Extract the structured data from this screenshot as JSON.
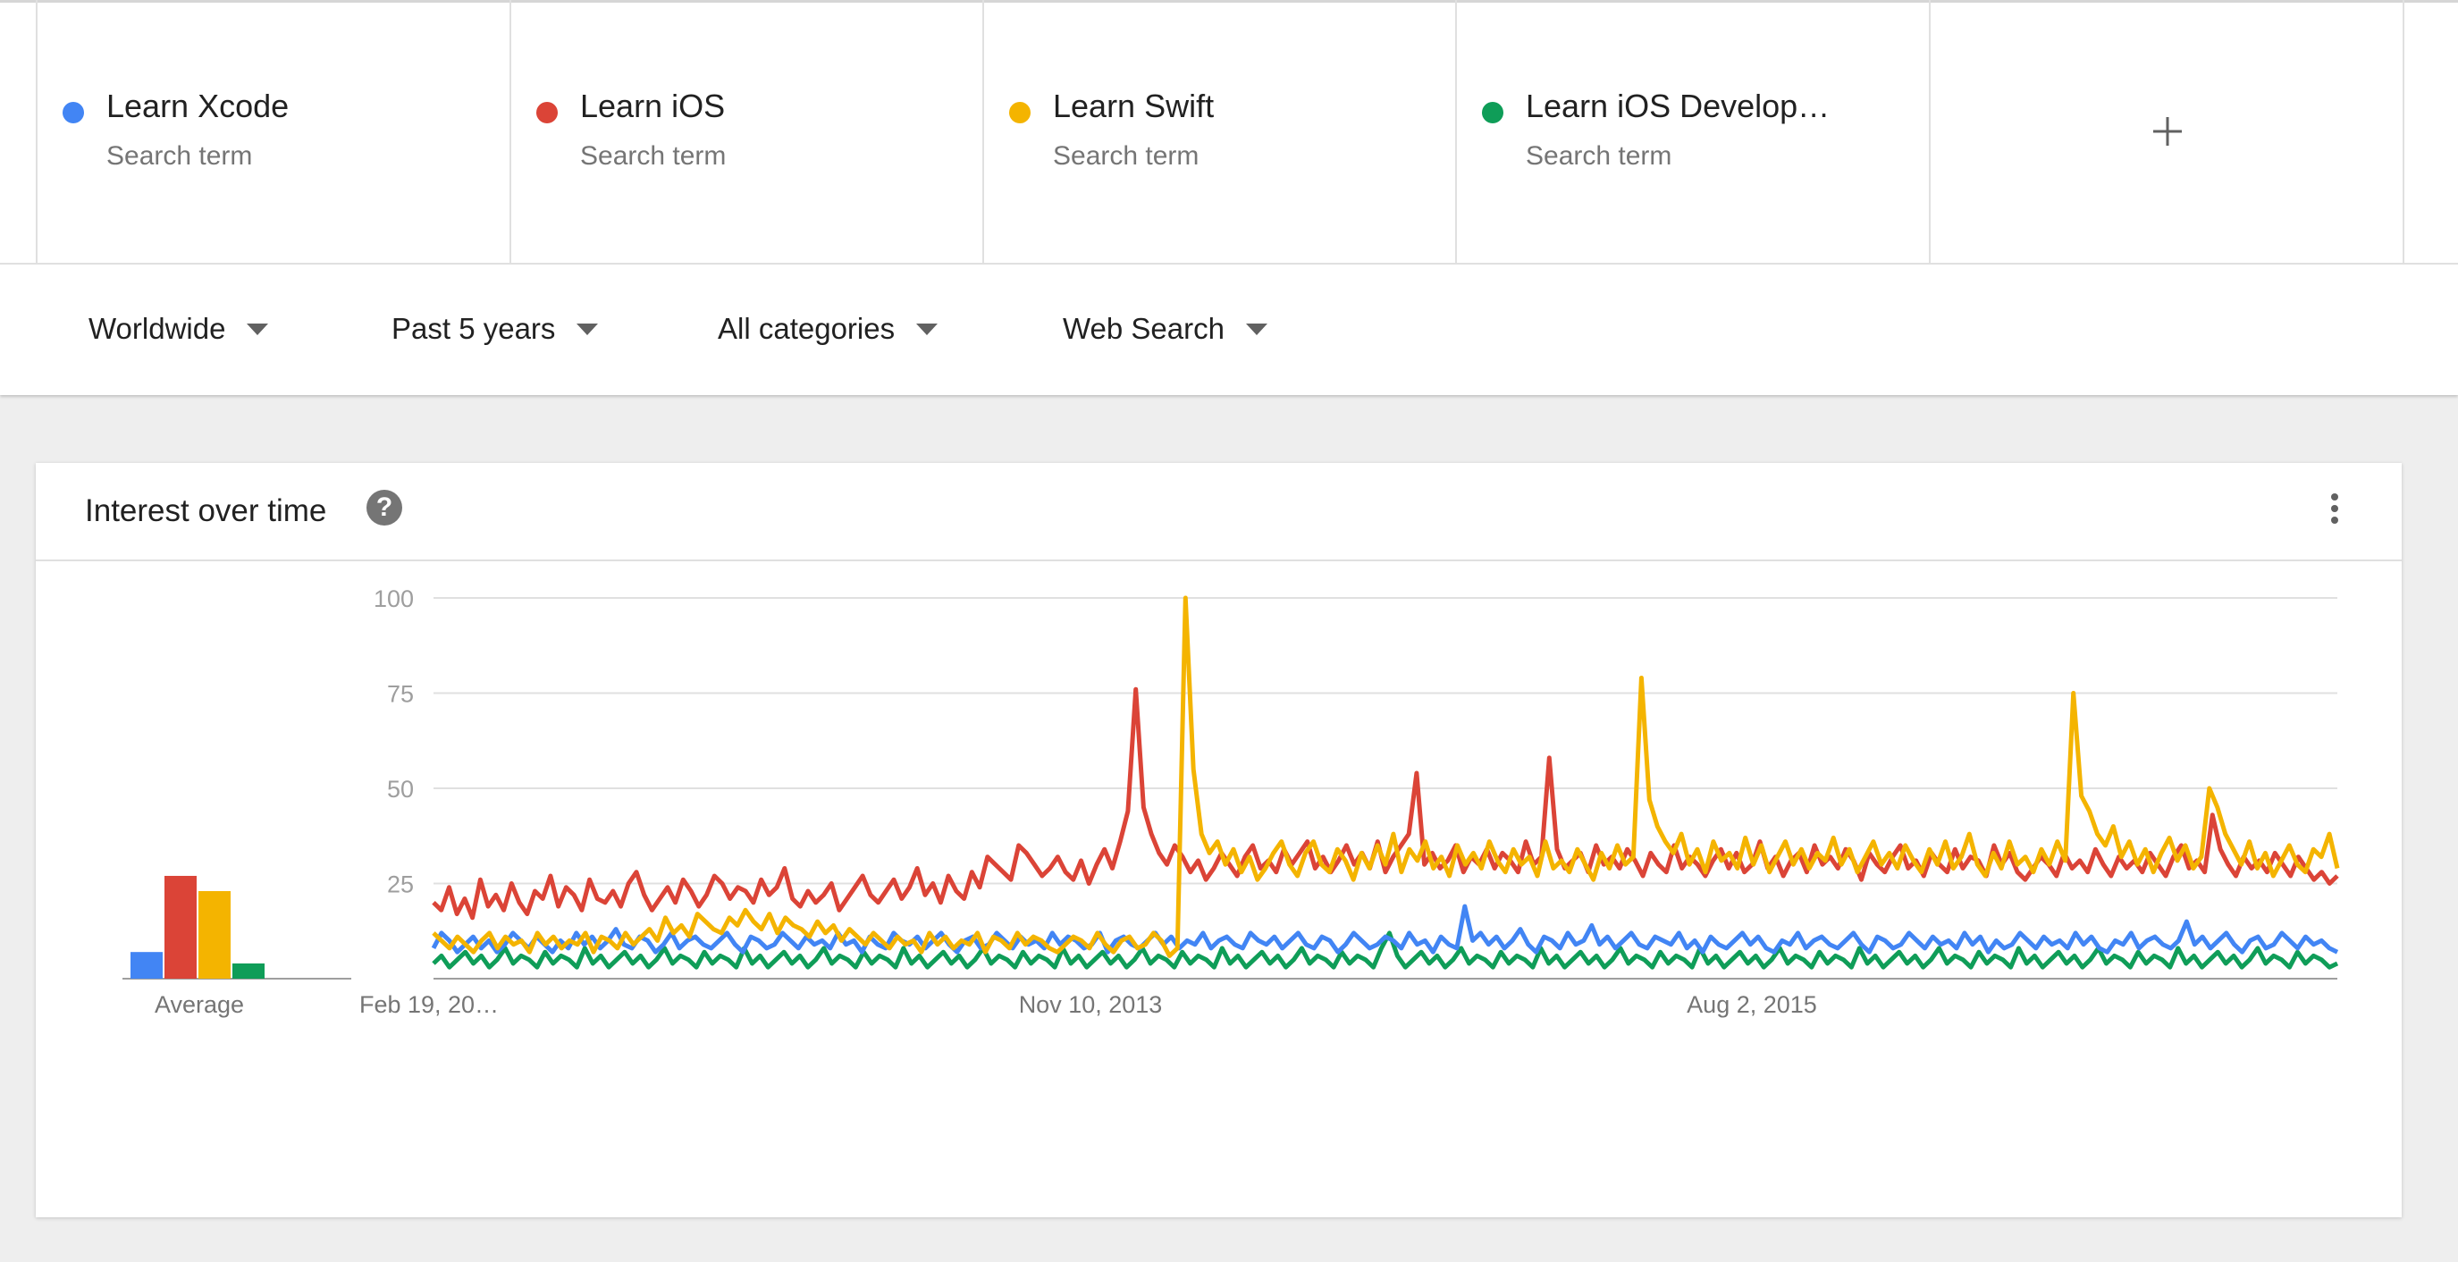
{
  "terms": [
    {
      "name": "Learn Xcode",
      "type": "Search term",
      "color": "#4285f4"
    },
    {
      "name": "Learn iOS",
      "type": "Search term",
      "color": "#db4437"
    },
    {
      "name": "Learn Swift",
      "type": "Search term",
      "color": "#f4b400"
    },
    {
      "name": "Learn iOS Develop…",
      "type": "Search term",
      "color": "#0f9d58"
    }
  ],
  "add_icon": "plus-icon",
  "filters": {
    "region": "Worldwide",
    "time": "Past 5 years",
    "category": "All categories",
    "property": "Web Search"
  },
  "card": {
    "title": "Interest over time",
    "help_icon": "?",
    "menu_icon": "more-vert-icon"
  },
  "chart_data": {
    "type": "line",
    "y_ticks": [
      "100",
      "75",
      "50",
      "25"
    ],
    "ylim": [
      0,
      100
    ],
    "x_tick_labels": [
      "Feb 19, 20…",
      "Nov 10, 2013",
      "Aug 2, 2015"
    ],
    "grid": true,
    "average": {
      "label": "Average",
      "values": [
        7,
        27,
        23,
        4
      ]
    },
    "series_colors": [
      "#4285f4",
      "#db4437",
      "#f4b400",
      "#0f9d58"
    ],
    "series": [
      {
        "name": "Learn Xcode",
        "values": [
          8,
          12,
          10,
          7,
          9,
          11,
          8,
          10,
          7,
          9,
          12,
          10,
          8,
          11,
          9,
          7,
          10,
          8,
          12,
          9,
          11,
          8,
          10,
          13,
          9,
          8,
          11,
          10,
          7,
          9,
          12,
          8,
          10,
          11,
          9,
          8,
          10,
          12,
          9,
          7,
          11,
          10,
          8,
          9,
          12,
          10,
          8,
          11,
          9,
          10,
          8,
          12,
          9,
          10,
          7,
          11,
          9,
          8,
          12,
          10,
          9,
          11,
          8,
          10,
          12,
          9,
          7,
          10,
          11,
          8,
          9,
          12,
          10,
          8,
          11,
          9,
          10,
          8,
          12,
          9,
          11,
          10,
          8,
          9,
          12,
          7,
          10,
          11,
          9,
          8,
          10,
          12,
          9,
          11,
          8,
          10,
          9,
          12,
          8,
          10,
          11,
          9,
          8,
          12,
          10,
          9,
          11,
          8,
          10,
          12,
          9,
          8,
          11,
          10,
          7,
          9,
          12,
          10,
          8,
          9,
          11,
          10,
          8,
          12,
          9,
          10,
          7,
          11,
          9,
          8,
          19,
          10,
          12,
          9,
          11,
          8,
          10,
          13,
          9,
          7,
          11,
          10,
          8,
          12,
          9,
          10,
          14,
          9,
          11,
          8,
          10,
          12,
          9,
          8,
          11,
          10,
          9,
          12,
          8,
          10,
          7,
          11,
          9,
          8,
          10,
          12,
          9,
          11,
          8,
          7,
          10,
          9,
          12,
          8,
          10,
          11,
          9,
          8,
          10,
          12,
          9,
          7,
          11,
          10,
          8,
          9,
          12,
          10,
          8,
          11,
          9,
          10,
          8,
          12,
          9,
          11,
          7,
          10,
          8,
          9,
          12,
          10,
          8,
          11,
          9,
          10,
          8,
          12,
          9,
          11,
          8,
          7,
          10,
          9,
          12,
          8,
          10,
          11,
          9,
          8,
          10,
          15,
          9,
          11,
          8,
          10,
          12,
          9,
          7,
          10,
          11,
          8,
          9,
          12,
          10,
          8,
          11,
          9,
          10,
          8,
          7
        ]
      },
      {
        "name": "Learn iOS",
        "values": [
          20,
          18,
          24,
          17,
          21,
          16,
          26,
          19,
          22,
          18,
          25,
          20,
          17,
          23,
          21,
          27,
          19,
          24,
          22,
          18,
          26,
          21,
          20,
          23,
          19,
          25,
          28,
          22,
          18,
          21,
          24,
          20,
          26,
          23,
          19,
          22,
          27,
          25,
          21,
          24,
          23,
          20,
          26,
          22,
          24,
          29,
          21,
          19,
          23,
          20,
          22,
          25,
          18,
          21,
          24,
          27,
          22,
          20,
          23,
          26,
          21,
          24,
          29,
          22,
          25,
          20,
          27,
          23,
          21,
          28,
          24,
          32,
          30,
          28,
          26,
          35,
          33,
          30,
          27,
          29,
          32,
          28,
          26,
          31,
          25,
          30,
          34,
          29,
          36,
          44,
          76,
          45,
          38,
          33,
          30,
          35,
          32,
          28,
          31,
          26,
          29,
          33,
          30,
          27,
          32,
          35,
          29,
          31,
          28,
          34,
          30,
          33,
          36,
          29,
          32,
          28,
          31,
          35,
          30,
          33,
          29,
          36,
          28,
          32,
          35,
          38,
          54,
          30,
          33,
          29,
          31,
          35,
          28,
          32,
          30,
          34,
          29,
          33,
          31,
          28,
          36,
          30,
          32,
          58,
          34,
          29,
          31,
          33,
          28,
          35,
          30,
          32,
          29,
          34,
          31,
          27,
          33,
          30,
          28,
          35,
          29,
          32,
          30,
          27,
          31,
          34,
          29,
          33,
          28,
          30,
          36,
          29,
          32,
          27,
          31,
          33,
          28,
          35,
          30,
          32,
          29,
          34,
          31,
          26,
          33,
          30,
          28,
          32,
          35,
          29,
          31,
          27,
          33,
          30,
          28,
          34,
          29,
          32,
          31,
          27,
          35,
          30,
          33,
          28,
          26,
          29,
          32,
          30,
          27,
          33,
          29,
          31,
          28,
          34,
          30,
          27,
          32,
          29,
          31,
          28,
          33,
          30,
          27,
          32,
          35,
          29,
          31,
          28,
          43,
          34,
          30,
          27,
          32,
          29,
          31,
          28,
          33,
          30,
          27,
          32,
          29,
          26,
          28,
          25,
          27
        ]
      },
      {
        "name": "Learn Swift",
        "values": [
          12,
          10,
          8,
          11,
          9,
          7,
          10,
          12,
          8,
          11,
          9,
          10,
          7,
          12,
          9,
          11,
          8,
          10,
          9,
          12,
          7,
          11,
          10,
          8,
          12,
          9,
          11,
          13,
          10,
          16,
          12,
          14,
          11,
          17,
          15,
          13,
          12,
          16,
          14,
          18,
          15,
          13,
          17,
          12,
          16,
          14,
          13,
          11,
          15,
          12,
          14,
          10,
          13,
          11,
          9,
          12,
          10,
          8,
          11,
          9,
          10,
          7,
          12,
          9,
          11,
          8,
          10,
          9,
          12,
          7,
          11,
          10,
          8,
          12,
          9,
          11,
          10,
          8,
          7,
          9,
          11,
          10,
          8,
          12,
          9,
          7,
          10,
          11,
          8,
          9,
          12,
          10,
          6,
          8,
          100,
          55,
          38,
          33,
          36,
          30,
          34,
          28,
          32,
          26,
          29,
          33,
          36,
          30,
          27,
          33,
          36,
          30,
          28,
          34,
          31,
          26,
          33,
          29,
          35,
          30,
          38,
          28,
          34,
          31,
          36,
          29,
          32,
          27,
          35,
          30,
          33,
          29,
          36,
          31,
          28,
          34,
          30,
          32,
          27,
          36,
          29,
          31,
          28,
          34,
          30,
          26,
          33,
          29,
          35,
          30,
          32,
          79,
          47,
          40,
          36,
          33,
          38,
          30,
          34,
          28,
          36,
          31,
          33,
          29,
          37,
          30,
          35,
          28,
          32,
          36,
          30,
          34,
          29,
          33,
          31,
          37,
          30,
          34,
          28,
          32,
          36,
          30,
          33,
          29,
          35,
          31,
          28,
          34,
          30,
          36,
          29,
          32,
          38,
          30,
          27,
          33,
          29,
          36,
          30,
          32,
          28,
          34,
          30,
          36,
          31,
          75,
          48,
          44,
          38,
          35,
          40,
          32,
          36,
          30,
          34,
          28,
          33,
          37,
          31,
          35,
          29,
          32,
          50,
          45,
          38,
          34,
          30,
          36,
          29,
          33,
          27,
          31,
          35,
          30,
          28,
          34,
          32,
          38,
          29
        ]
      },
      {
        "name": "Learn iOS Development",
        "values": [
          4,
          6,
          3,
          5,
          7,
          4,
          6,
          3,
          5,
          8,
          4,
          6,
          5,
          3,
          7,
          4,
          6,
          5,
          3,
          8,
          4,
          6,
          3,
          5,
          7,
          4,
          6,
          3,
          5,
          8,
          4,
          6,
          5,
          3,
          7,
          4,
          6,
          5,
          3,
          8,
          4,
          6,
          3,
          5,
          7,
          4,
          6,
          3,
          5,
          8,
          4,
          6,
          5,
          3,
          7,
          4,
          6,
          5,
          3,
          8,
          4,
          6,
          3,
          5,
          7,
          4,
          6,
          3,
          5,
          8,
          4,
          6,
          5,
          3,
          7,
          4,
          6,
          5,
          3,
          8,
          4,
          6,
          3,
          5,
          7,
          4,
          6,
          3,
          5,
          8,
          4,
          6,
          5,
          3,
          7,
          4,
          6,
          5,
          3,
          8,
          4,
          6,
          3,
          5,
          7,
          4,
          6,
          3,
          5,
          8,
          4,
          6,
          5,
          3,
          7,
          4,
          6,
          5,
          3,
          8,
          12,
          6,
          3,
          5,
          7,
          4,
          6,
          3,
          5,
          8,
          4,
          6,
          5,
          3,
          7,
          4,
          6,
          5,
          3,
          8,
          4,
          6,
          3,
          5,
          7,
          4,
          6,
          3,
          5,
          8,
          4,
          6,
          5,
          3,
          7,
          4,
          6,
          5,
          3,
          8,
          4,
          6,
          3,
          5,
          7,
          4,
          6,
          3,
          5,
          8,
          4,
          6,
          5,
          3,
          7,
          4,
          6,
          5,
          3,
          8,
          4,
          6,
          3,
          5,
          7,
          4,
          6,
          3,
          5,
          8,
          4,
          6,
          5,
          3,
          7,
          4,
          6,
          5,
          3,
          8,
          4,
          6,
          3,
          5,
          7,
          4,
          6,
          3,
          5,
          8,
          4,
          6,
          5,
          3,
          7,
          4,
          6,
          5,
          3,
          8,
          4,
          6,
          3,
          5,
          7,
          4,
          6,
          3,
          5,
          8,
          4,
          6,
          5,
          3,
          7,
          4,
          6,
          5,
          3,
          4
        ]
      }
    ]
  }
}
